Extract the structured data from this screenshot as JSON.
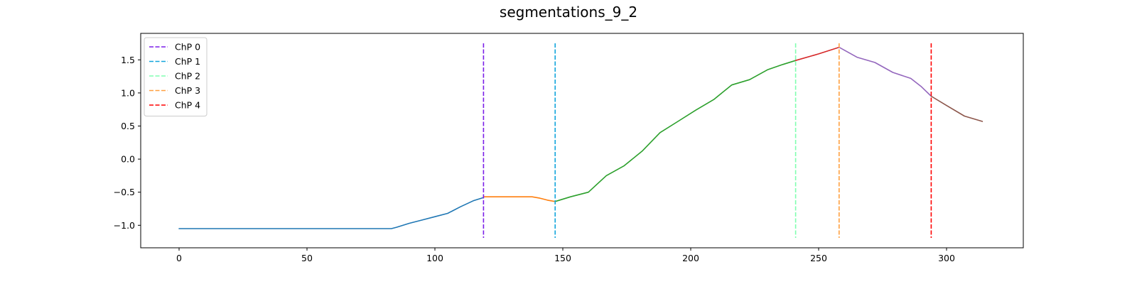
{
  "chart_data": {
    "type": "line",
    "title": "segmentations_9_2",
    "xlabel": "",
    "ylabel": "",
    "xlim": [
      -15,
      330
    ],
    "ylim": [
      -1.34,
      1.9
    ],
    "xticks": [
      0,
      50,
      100,
      150,
      200,
      250,
      300
    ],
    "yticks": [
      -1.0,
      -0.5,
      0.0,
      0.5,
      1.0,
      1.5
    ],
    "ytick_labels": [
      "−1.0",
      "−0.5",
      "0.0",
      "0.5",
      "1.0",
      "1.5"
    ],
    "grid": false,
    "legend_placement": "top-left",
    "segments": [
      {
        "color": "#1f77b4",
        "x": [
          0,
          20,
          40,
          60,
          83,
          85,
          90,
          95,
          100,
          105,
          110,
          115,
          119
        ],
        "y": [
          -1.05,
          -1.05,
          -1.05,
          -1.05,
          -1.05,
          -1.03,
          -0.97,
          -0.92,
          -0.87,
          -0.82,
          -0.72,
          -0.63,
          -0.58
        ]
      },
      {
        "color": "#ff7f0e",
        "x": [
          119,
          125,
          130,
          135,
          138,
          141,
          144,
          147
        ],
        "y": [
          -0.57,
          -0.57,
          -0.57,
          -0.57,
          -0.57,
          -0.59,
          -0.62,
          -0.64
        ]
      },
      {
        "color": "#2ca02c",
        "x": [
          147,
          153,
          160,
          167,
          174,
          181,
          188,
          195,
          202,
          209,
          216,
          223,
          230,
          236,
          241
        ],
        "y": [
          -0.64,
          -0.57,
          -0.5,
          -0.25,
          -0.1,
          0.12,
          0.4,
          0.57,
          0.74,
          0.9,
          1.12,
          1.2,
          1.35,
          1.43,
          1.49
        ]
      },
      {
        "color": "#d62728",
        "x": [
          241,
          250,
          258
        ],
        "y": [
          1.49,
          1.59,
          1.69
        ]
      },
      {
        "color": "#9467bd",
        "x": [
          258,
          265,
          272,
          279,
          286,
          290,
          294
        ],
        "y": [
          1.69,
          1.54,
          1.46,
          1.31,
          1.22,
          1.1,
          0.95
        ]
      },
      {
        "color": "#8c564b",
        "x": [
          294,
          300,
          307,
          314
        ],
        "y": [
          0.95,
          0.81,
          0.65,
          0.57
        ]
      }
    ],
    "changepoints": [
      {
        "name": "ChP 0",
        "x": 119,
        "color": "#7b1fe8"
      },
      {
        "name": "ChP 1",
        "x": 147,
        "color": "#12a5dc"
      },
      {
        "name": "ChP 2",
        "x": 241,
        "color": "#80ffb0"
      },
      {
        "name": "ChP 3",
        "x": 258,
        "color": "#ffa040"
      },
      {
        "name": "ChP 4",
        "x": 294,
        "color": "#ff0000"
      }
    ]
  }
}
